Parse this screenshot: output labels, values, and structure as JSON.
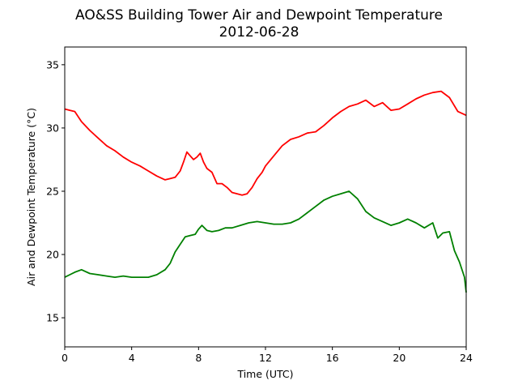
{
  "chart_data": {
    "type": "line",
    "title": "AO&SS Building Tower Air and Dewpoint Temperature",
    "subtitle": "2012-06-28",
    "xlabel": "Time (UTC)",
    "ylabel": "Air and Dewpoint Temperature (°C)",
    "xlim": [
      0,
      24
    ],
    "ylim": [
      12.7,
      36.4
    ],
    "xticks": [
      0,
      4,
      8,
      12,
      16,
      20,
      24
    ],
    "yticks": [
      15,
      20,
      25,
      30,
      35
    ],
    "grid": false,
    "series": [
      {
        "color": "#ff0000",
        "x": [
          0,
          0.3,
          0.6,
          1.0,
          1.5,
          2.0,
          2.5,
          3.0,
          3.5,
          4.0,
          4.5,
          5.0,
          5.5,
          6.0,
          6.3,
          6.6,
          6.9,
          7.1,
          7.3,
          7.5,
          7.7,
          7.9,
          8.1,
          8.3,
          8.5,
          8.8,
          9.1,
          9.4,
          9.7,
          10.0,
          10.3,
          10.6,
          10.9,
          11.2,
          11.5,
          11.8,
          12.0,
          12.5,
          13.0,
          13.5,
          14.0,
          14.5,
          15.0,
          15.5,
          16.0,
          16.5,
          17.0,
          17.5,
          18.0,
          18.5,
          19.0,
          19.5,
          20.0,
          20.5,
          21.0,
          21.5,
          22.0,
          22.5,
          23.0,
          23.5,
          24.0
        ],
        "values": [
          31.5,
          31.4,
          31.3,
          30.5,
          29.8,
          29.2,
          28.6,
          28.2,
          27.7,
          27.3,
          27.0,
          26.6,
          26.2,
          25.9,
          26.0,
          26.1,
          26.6,
          27.3,
          28.1,
          27.8,
          27.5,
          27.7,
          28.0,
          27.3,
          26.8,
          26.5,
          25.6,
          25.6,
          25.3,
          24.9,
          24.8,
          24.7,
          24.8,
          25.3,
          26.0,
          26.5,
          27.0,
          27.8,
          28.6,
          29.1,
          29.3,
          29.6,
          29.7,
          30.2,
          30.8,
          31.3,
          31.7,
          31.9,
          32.2,
          31.7,
          32.0,
          31.4,
          31.5,
          31.9,
          32.3,
          32.6,
          32.8,
          32.9,
          32.4,
          31.3,
          31.0
        ]
      },
      {
        "color": "#008000",
        "x": [
          0,
          0.3,
          0.6,
          1.0,
          1.5,
          2.0,
          2.5,
          3.0,
          3.5,
          4.0,
          4.5,
          5.0,
          5.5,
          6.0,
          6.3,
          6.6,
          6.9,
          7.2,
          7.5,
          7.8,
          8.0,
          8.2,
          8.5,
          8.8,
          9.2,
          9.6,
          10.0,
          10.5,
          11.0,
          11.5,
          12.0,
          12.5,
          13.0,
          13.5,
          14.0,
          14.5,
          15.0,
          15.5,
          16.0,
          16.5,
          17.0,
          17.5,
          18.0,
          18.5,
          19.0,
          19.5,
          20.0,
          20.5,
          21.0,
          21.5,
          22.0,
          22.3,
          22.6,
          23.0,
          23.3,
          23.6,
          23.9,
          24.0
        ],
        "values": [
          18.2,
          18.4,
          18.6,
          18.8,
          18.5,
          18.4,
          18.3,
          18.2,
          18.3,
          18.2,
          18.2,
          18.2,
          18.4,
          18.8,
          19.3,
          20.2,
          20.8,
          21.4,
          21.5,
          21.6,
          22.0,
          22.3,
          21.9,
          21.8,
          21.9,
          22.1,
          22.1,
          22.3,
          22.5,
          22.6,
          22.5,
          22.4,
          22.4,
          22.5,
          22.8,
          23.3,
          23.8,
          24.3,
          24.6,
          24.8,
          25.0,
          24.4,
          23.4,
          22.9,
          22.6,
          22.3,
          22.5,
          22.8,
          22.5,
          22.1,
          22.5,
          21.3,
          21.7,
          21.8,
          20.3,
          19.4,
          18.2,
          17.0
        ]
      }
    ]
  }
}
